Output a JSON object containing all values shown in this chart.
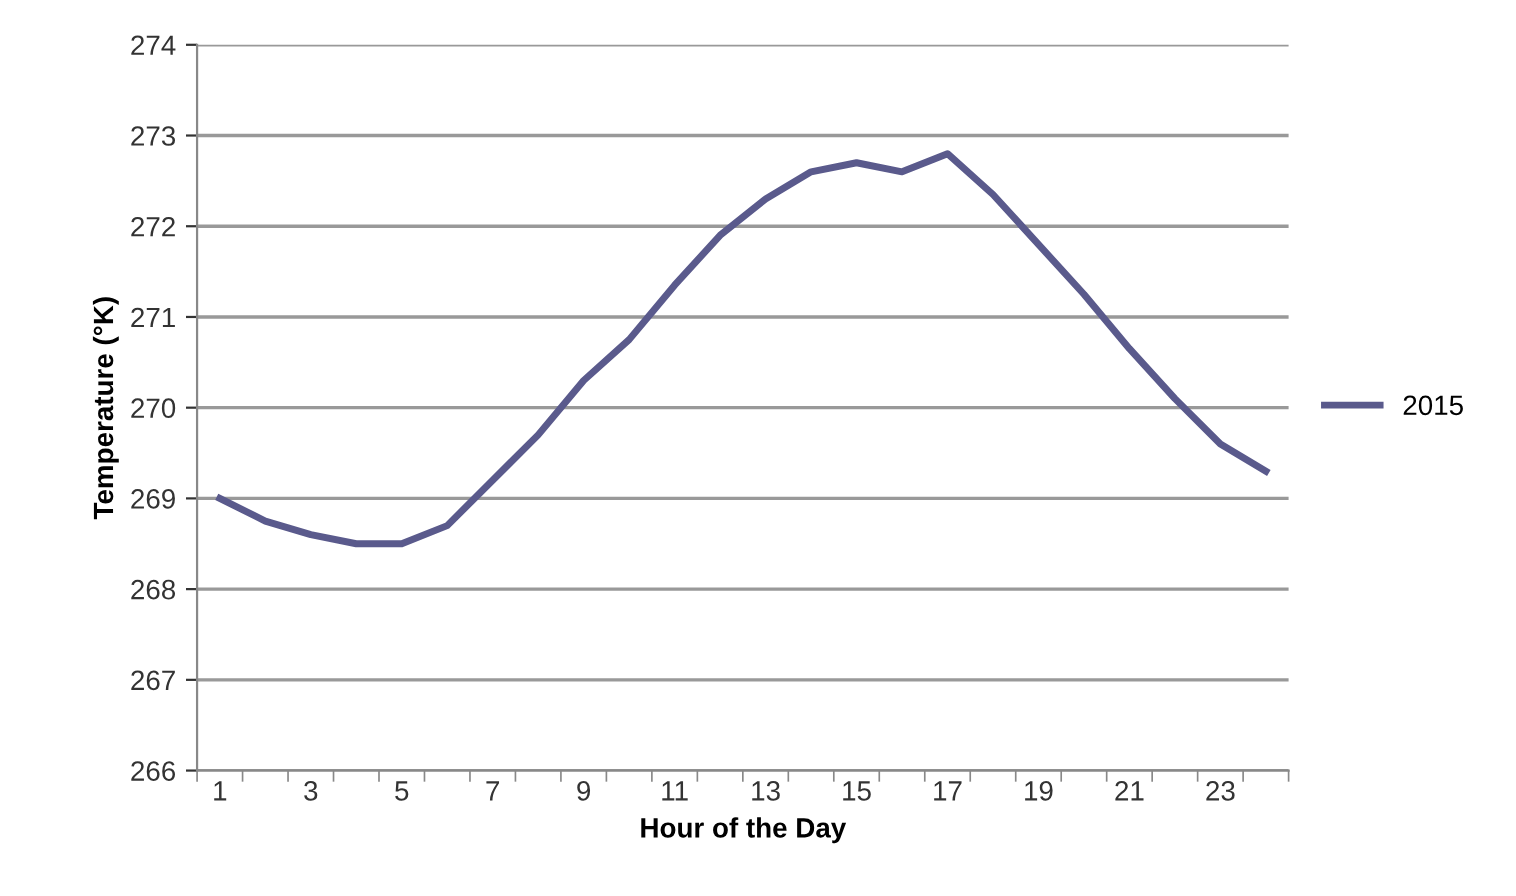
{
  "chart_data": {
    "type": "line",
    "xlabel": "Hour of the Day",
    "ylabel": "Temperature (°K)",
    "categories": [
      "1",
      null,
      "3",
      null,
      "5",
      null,
      "7",
      null,
      "9",
      null,
      "11",
      null,
      "13",
      null,
      "15",
      null,
      "17",
      null,
      "19",
      null,
      "21",
      null,
      "23",
      null
    ],
    "series": [
      {
        "name": "2015",
        "color": "#5a5a8c",
        "values": [
          269.0,
          268.75,
          268.6,
          268.5,
          268.5,
          268.7,
          269.2,
          269.7,
          270.3,
          270.75,
          271.35,
          271.9,
          272.3,
          272.6,
          272.7,
          272.6,
          272.8,
          272.35,
          271.8,
          271.25,
          270.65,
          270.1,
          269.6,
          269.3
        ]
      }
    ],
    "ylim": [
      266,
      274
    ],
    "yticks": [
      266,
      267,
      268,
      269,
      270,
      271,
      272,
      273,
      274
    ],
    "grid": "y",
    "legend": "right",
    "marker": "none",
    "line_style": "solid"
  }
}
